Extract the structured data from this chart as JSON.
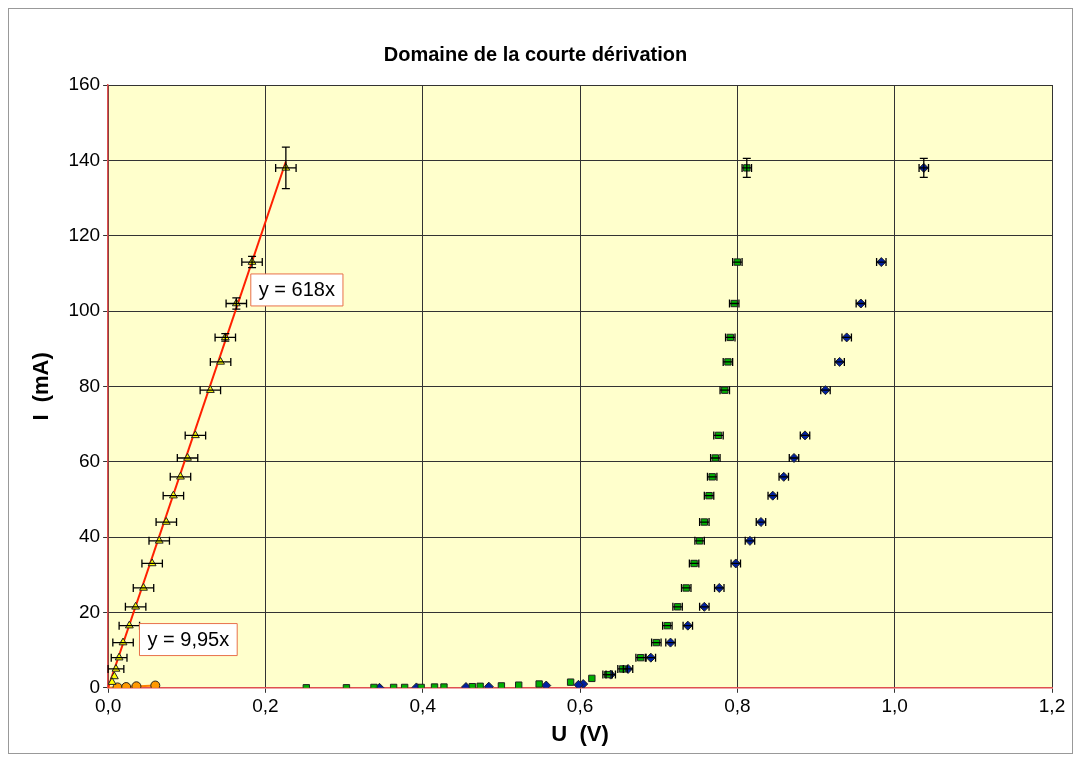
{
  "chart_data": {
    "type": "scatter",
    "title": "Domaine de la courte dérivation",
    "xlabel": "U  (V)",
    "ylabel": "I  (mA)",
    "xlim": [
      0,
      1.2
    ],
    "ylim": [
      0,
      160
    ],
    "xticks": [
      {
        "value": 0,
        "label": "0,0"
      },
      {
        "value": 0.2,
        "label": "0,2"
      },
      {
        "value": 0.4,
        "label": "0,4"
      },
      {
        "value": 0.6,
        "label": "0,6"
      },
      {
        "value": 0.8,
        "label": "0,8"
      },
      {
        "value": 1,
        "label": "1,0"
      },
      {
        "value": 1.2,
        "label": "1,2"
      }
    ],
    "yticks": [
      0,
      20,
      40,
      60,
      80,
      100,
      120,
      140,
      160
    ],
    "grid": true,
    "legend": false,
    "annotations": [
      "y = 618x",
      "y = 9,95x"
    ],
    "series": [
      {
        "marker": "triangle",
        "color": "#ffff00",
        "x": [
          0.226,
          0.183,
          0.163,
          0.149,
          0.143,
          0.13,
          0.111,
          0.101,
          0.092,
          0.083,
          0.074,
          0.065,
          0.056,
          0.045,
          0.035,
          0.027,
          0.019,
          0.014,
          0.01,
          0.008,
          0.005
        ],
        "values": [
          138,
          113,
          102,
          93,
          86.5,
          79,
          67,
          61,
          56,
          51,
          44,
          39,
          33,
          26.5,
          21.5,
          16.5,
          12,
          8,
          5,
          3,
          1.5
        ],
        "errors": [
          5.5,
          1.5,
          1.5,
          1,
          null,
          null,
          null,
          null,
          null,
          null,
          null,
          null,
          null,
          null,
          null,
          null,
          null,
          null,
          null,
          null,
          null
        ],
        "xerrors": [
          0.013,
          0.013,
          0.013,
          0.013,
          0.013,
          0.013,
          0.013,
          0.013,
          0.013,
          0.013,
          0.013,
          0.013,
          0.013,
          0.013,
          0.013,
          0.013,
          0.013,
          0.01,
          0.01,
          null,
          null
        ]
      },
      {
        "type": "line",
        "marker": "none",
        "line_style": "solid",
        "color": "#ff2000",
        "x": [
          0,
          0.226
        ],
        "values": [
          0,
          139.7
        ]
      },
      {
        "marker": "circle",
        "color": "#ff9900",
        "x": [
          0.012,
          0.023,
          0.036,
          0.06
        ],
        "values": [
          0.1,
          0.2,
          0.4,
          0.6
        ]
      },
      {
        "type": "line",
        "marker": "none",
        "line_style": "solid",
        "color": "#ff8000",
        "x": [
          0,
          0.06
        ],
        "values": [
          0,
          0.6
        ]
      },
      {
        "marker": "square",
        "color": "#00b000",
        "x": [
          0.812,
          0.8,
          0.796,
          0.791,
          0.788,
          0.784,
          0.776,
          0.772,
          0.768,
          0.764,
          0.758,
          0.752,
          0.745,
          0.735,
          0.724,
          0.711,
          0.697,
          0.677,
          0.654,
          0.635,
          0.615,
          0.588,
          0.548,
          0.522,
          0.5,
          0.473,
          0.463,
          0.427,
          0.415,
          0.398,
          0.377,
          0.363,
          0.338,
          0.303,
          0.252
        ],
        "values": [
          138,
          113,
          102,
          93,
          86.5,
          79,
          67,
          61,
          56,
          51,
          44,
          39,
          33,
          26.5,
          21.5,
          16.5,
          12,
          8,
          5,
          3.5,
          2.5,
          1.5,
          1,
          0.7,
          0.5,
          0.4,
          0.3,
          0.2,
          0.2,
          0.1,
          0.1,
          0.1,
          0.1,
          0,
          0
        ],
        "errors": [
          2.5,
          null,
          null,
          null,
          null,
          null,
          null,
          null,
          null,
          null,
          null,
          null,
          null,
          null,
          null,
          null,
          null,
          null,
          null,
          null,
          null,
          null,
          null,
          null,
          null,
          null,
          null,
          null,
          null,
          null,
          null,
          null,
          null,
          null,
          null
        ],
        "xerrors": [
          0.006,
          0.006,
          0.006,
          0.006,
          0.006,
          0.006,
          0.006,
          0.006,
          0.006,
          0.006,
          0.006,
          0.006,
          0.006,
          0.006,
          0.006,
          0.006,
          0.006,
          0.006,
          0.006,
          0.006,
          null,
          null,
          null,
          null,
          null,
          null,
          null,
          null,
          null,
          null,
          null,
          null,
          null,
          null,
          null
        ]
      },
      {
        "marker": "diamond",
        "color": "#0020a0",
        "x": [
          1.037,
          0.983,
          0.957,
          0.939,
          0.93,
          0.912,
          0.886,
          0.872,
          0.859,
          0.845,
          0.83,
          0.816,
          0.798,
          0.777,
          0.758,
          0.737,
          0.715,
          0.69,
          0.661,
          0.639,
          0.604,
          0.598,
          0.557,
          0.484,
          0.455,
          0.392,
          0.345
        ],
        "values": [
          138,
          113,
          102,
          93,
          86.5,
          79,
          67,
          61,
          56,
          51,
          44,
          39,
          33,
          26.5,
          21.5,
          16.5,
          12,
          8,
          5,
          3.5,
          1,
          0.8,
          0.6,
          0.3,
          0.2,
          0.1,
          0
        ],
        "errors": [
          2.5,
          null,
          null,
          null,
          null,
          null,
          null,
          null,
          null,
          null,
          null,
          null,
          null,
          null,
          null,
          null,
          null,
          null,
          null,
          null,
          null,
          null,
          null,
          null,
          null,
          null,
          null
        ],
        "xerrors": [
          0.006,
          0.006,
          0.006,
          0.006,
          0.006,
          0.006,
          0.006,
          0.006,
          0.006,
          0.006,
          0.006,
          0.006,
          0.006,
          0.006,
          0.006,
          0.006,
          0.006,
          0.006,
          0.006,
          0.006,
          null,
          null,
          null,
          null,
          null,
          null,
          null
        ]
      }
    ]
  }
}
